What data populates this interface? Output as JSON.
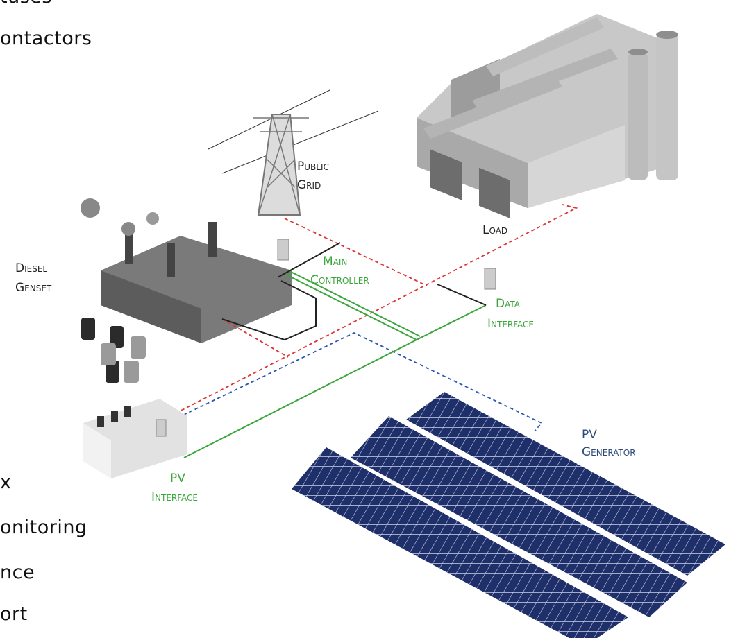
{
  "side_text": [
    "tuses",
    "ontactors",
    "x",
    "onitoring",
    "nce",
    "ort"
  ],
  "labels": {
    "public_grid": [
      "Public",
      "Grid"
    ],
    "load": [
      "Load"
    ],
    "diesel_genset": [
      "Diesel",
      "Genset"
    ],
    "main_controller": [
      "Main",
      "Controller"
    ],
    "data_interface": [
      "Data",
      "Interface"
    ],
    "pv_interface": [
      "PV",
      "Interface"
    ],
    "pv_generator": [
      "PV",
      "Generator"
    ]
  }
}
